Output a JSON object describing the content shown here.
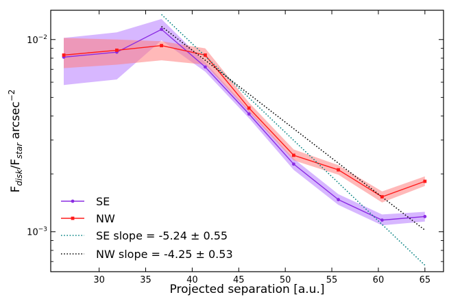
{
  "chart_data": {
    "type": "line",
    "xlabel": "Projected separation [a.u.]",
    "ylabel_parts": {
      "prefix": "F",
      "num_sub": "disk",
      "sep": "/F",
      "den_sub": "star",
      "unit": " arcsec",
      "unit_sup": "−2"
    },
    "xscale": "linear",
    "yscale": "log",
    "xlim": [
      24.8,
      67.0
    ],
    "ylim": [
      0.00062,
      0.0142
    ],
    "x_ticks": [
      30,
      35,
      40,
      45,
      50,
      55,
      60,
      65
    ],
    "x_tick_labels": [
      "30",
      "35",
      "40",
      "45",
      "50",
      "55",
      "60",
      "65"
    ],
    "y_major_ticks": [
      0.001,
      0.01
    ],
    "y_tick_labels": [
      {
        "base": "10",
        "exp": "−3"
      },
      {
        "base": "10",
        "exp": "−2"
      }
    ],
    "y_minor_ticks": [
      0.0007,
      0.0008,
      0.0009,
      0.002,
      0.003,
      0.004,
      0.005,
      0.006,
      0.007,
      0.008,
      0.009
    ],
    "grid": false,
    "legend_position": "lower-left",
    "series": [
      {
        "name": "SE",
        "kind": "line-with-band",
        "color": "#8a2be2",
        "band_color": "#b070ff",
        "x": [
          26.2,
          31.9,
          36.7,
          41.4,
          46.1,
          50.9,
          55.7,
          60.4,
          65.0
        ],
        "y": [
          0.0081,
          0.0086,
          0.0113,
          0.0072,
          0.0041,
          0.00225,
          0.00147,
          0.00115,
          0.0012
        ],
        "y_low": [
          0.0058,
          0.0062,
          0.0099,
          0.0068,
          0.0039,
          0.0021,
          0.00138,
          0.00108,
          0.00113
        ],
        "y_high": [
          0.0102,
          0.0109,
          0.0128,
          0.0076,
          0.0043,
          0.0024,
          0.00157,
          0.00123,
          0.00127
        ]
      },
      {
        "name": "NW",
        "kind": "line-with-band",
        "color": "#ff1a1a",
        "band_color": "#ff8080",
        "x": [
          26.2,
          31.9,
          36.7,
          41.4,
          46.1,
          50.9,
          55.7,
          60.4,
          65.0
        ],
        "y": [
          0.0083,
          0.0088,
          0.0093,
          0.0083,
          0.0044,
          0.0025,
          0.0021,
          0.00152,
          0.00183
        ],
        "y_low": [
          0.0071,
          0.0074,
          0.0078,
          0.0074,
          0.0042,
          0.00235,
          0.00198,
          0.00142,
          0.00173
        ],
        "y_high": [
          0.0102,
          0.01,
          0.0098,
          0.009,
          0.0047,
          0.00268,
          0.00222,
          0.00162,
          0.00194
        ]
      },
      {
        "name": "SE slope = -5.24 ± 0.55",
        "kind": "fit",
        "color": "#008080",
        "x": [
          36.7,
          65.0
        ],
        "y": [
          0.0135,
          0.00067
        ]
      },
      {
        "name": "NW slope = -4.25 ± 0.53",
        "kind": "fit",
        "color": "#000000",
        "x": [
          36.7,
          65.0
        ],
        "y": [
          0.0117,
          0.00102
        ]
      }
    ]
  }
}
